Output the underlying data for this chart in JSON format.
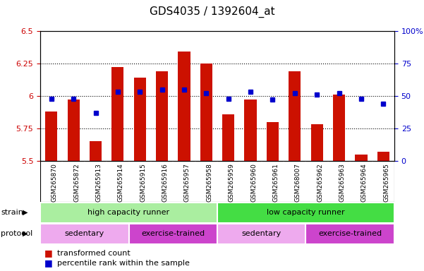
{
  "title": "GDS4035 / 1392604_at",
  "samples": [
    "GSM265870",
    "GSM265872",
    "GSM265913",
    "GSM265914",
    "GSM265915",
    "GSM265916",
    "GSM265957",
    "GSM265958",
    "GSM265959",
    "GSM265960",
    "GSM265961",
    "GSM268007",
    "GSM265962",
    "GSM265963",
    "GSM265964",
    "GSM265965"
  ],
  "bar_values": [
    5.88,
    5.97,
    5.65,
    6.22,
    6.14,
    6.19,
    6.34,
    6.25,
    5.86,
    5.97,
    5.8,
    6.19,
    5.78,
    6.01,
    5.55,
    5.57
  ],
  "percentile_values": [
    48,
    48,
    37,
    53,
    53,
    55,
    55,
    52,
    48,
    53,
    47,
    52,
    51,
    52,
    48,
    44
  ],
  "bar_bottom": 5.5,
  "ylim_left": [
    5.5,
    6.5
  ],
  "ylim_right": [
    0,
    100
  ],
  "yticks_left": [
    5.5,
    5.75,
    6.0,
    6.25,
    6.5
  ],
  "ytick_labels_left": [
    "5.5",
    "5.75",
    "6",
    "6.25",
    "6.5"
  ],
  "yticks_right": [
    0,
    25,
    50,
    75,
    100
  ],
  "ytick_labels_right": [
    "0",
    "25",
    "50",
    "75",
    "100%"
  ],
  "bar_color": "#cc1100",
  "dot_color": "#0000cc",
  "strain_groups": [
    {
      "label": "high capacity runner",
      "start": 0,
      "end": 8,
      "color": "#aaeea0"
    },
    {
      "label": "low capacity runner",
      "start": 8,
      "end": 16,
      "color": "#44dd44"
    }
  ],
  "protocol_groups": [
    {
      "label": "sedentary",
      "start": 0,
      "end": 4,
      "color": "#eeaaee"
    },
    {
      "label": "exercise-trained",
      "start": 4,
      "end": 8,
      "color": "#cc44cc"
    },
    {
      "label": "sedentary",
      "start": 8,
      "end": 12,
      "color": "#eeaaee"
    },
    {
      "label": "exercise-trained",
      "start": 12,
      "end": 16,
      "color": "#cc44cc"
    }
  ],
  "strain_label": "strain",
  "protocol_label": "protocol",
  "legend_bar_label": "transformed count",
  "legend_dot_label": "percentile rank within the sample",
  "xtick_bg_color": "#c8c8c8",
  "xtick_divider_color": "#ffffff"
}
